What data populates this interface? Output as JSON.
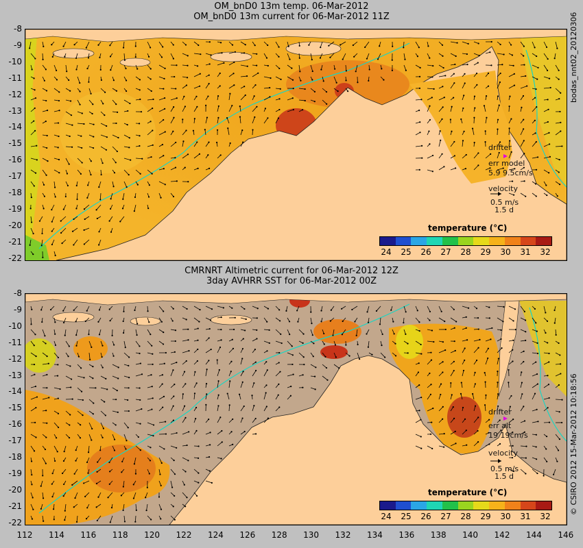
{
  "top_panel": {
    "title_line1": "OM_bnD0 13m temp. 06-Mar-2012",
    "title_line2": "OM_bnD0 13m current for 06-Mar-2012 11Z",
    "side_label": "bodas_nnt02_20120306",
    "legend": {
      "title": "temperature (°C)",
      "ticks": [
        "24",
        "25",
        "26",
        "27",
        "28",
        "29",
        "30",
        "31",
        "32"
      ]
    },
    "drifter_label": "drifter",
    "err_label": "err model",
    "err_value": "5.9 9.5cm/s",
    "velocity_label": "velocity",
    "velocity_value": "0.5 m/s",
    "velocity_days": "1.5 d"
  },
  "bottom_panel": {
    "title_line1": "CMRNRT Altimetric current for 06-Mar-2012 12Z",
    "title_line2": "3day AVHRR SST for 06-Mar-2012 00Z",
    "side_label": "© CSIRO 2012   15-Mar-2012 10:18:56",
    "legend": {
      "title": "temperature (°C)",
      "ticks": [
        "24",
        "25",
        "26",
        "27",
        "28",
        "29",
        "30",
        "31",
        "32"
      ]
    },
    "drifter_label": "drifter",
    "err_label": "err alt",
    "err_value": "19 19cm/s",
    "velocity_label": "velocity",
    "velocity_value": "0.5 m/s",
    "velocity_days": "1.5 d"
  },
  "axes": {
    "lat_ticks": [
      "-8",
      "-9",
      "-10",
      "-11",
      "-12",
      "-13",
      "-14",
      "-15",
      "-16",
      "-17",
      "-18",
      "-19",
      "-20",
      "-21",
      "-22"
    ],
    "lon_ticks": [
      "112",
      "114",
      "116",
      "118",
      "120",
      "122",
      "124",
      "126",
      "128",
      "130",
      "132",
      "134",
      "136",
      "138",
      "140",
      "142",
      "144",
      "146"
    ]
  },
  "colors": {
    "land": "#fdcf9a",
    "ocean_warm": "#f3a21e",
    "ocean_hot": "#c0361a",
    "no_data": "#c2a78c",
    "isobath": "#19d6c4",
    "drifter": "#e000e0",
    "colorbar": [
      "#1a1a8c",
      "#1f4fd0",
      "#2aa6e6",
      "#1fd6b4",
      "#22c14a",
      "#9ad51f",
      "#e6d91a",
      "#f6b21a",
      "#f0821a",
      "#d6461a",
      "#a81a14"
    ]
  }
}
